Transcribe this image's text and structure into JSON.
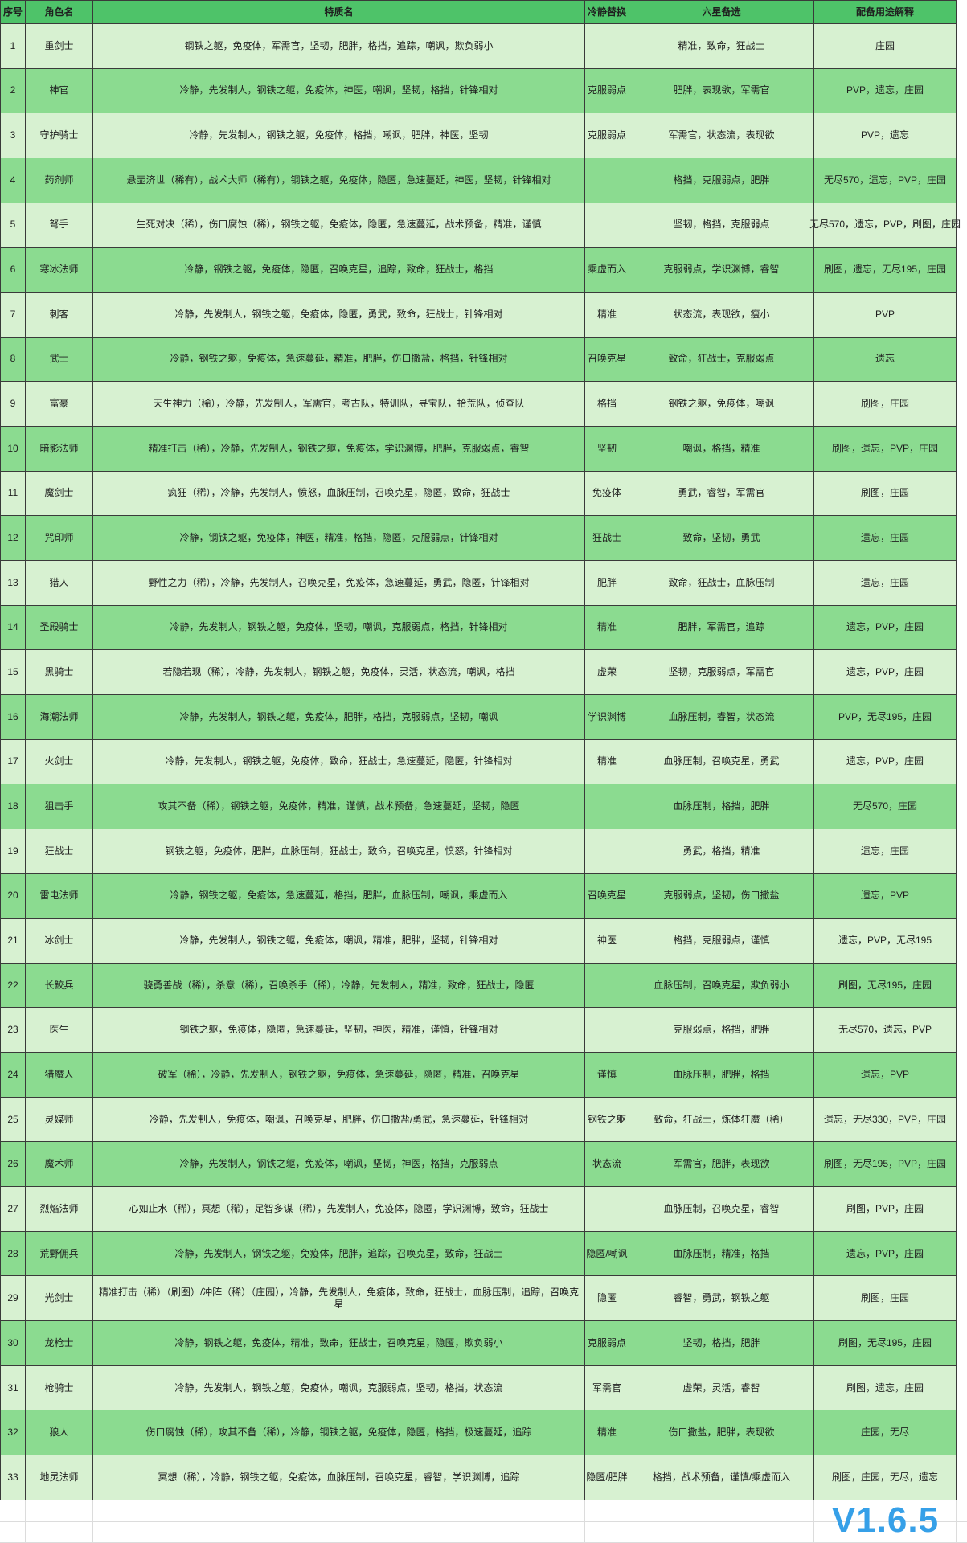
{
  "colors": {
    "header_bg": "#4ec369",
    "row_light": "#d7f1d1",
    "row_dark": "#8bdb90",
    "grid": "#3a3a3a",
    "faint_grid": "#dcdcdc",
    "version_blue": "#36a0e8"
  },
  "header": {
    "cols": [
      "序号",
      "角色名",
      "特质名",
      "冷静替换",
      "六星备选",
      "配备用途解释"
    ]
  },
  "footer": {
    "version": "V1.6.5"
  },
  "rows": [
    {
      "no": "1",
      "name": "重剑士",
      "traits": "钢铁之躯，免疫体，军需官，坚韧，肥胖，格挡，追踪，嘲讽，欺负弱小",
      "calm": "",
      "six": "精准，致命，狂战士",
      "usage": "庄园"
    },
    {
      "no": "2",
      "name": "神官",
      "traits": "冷静，先发制人，钢铁之躯，免疫体，神医，嘲讽，坚韧，格挡，针锋相对",
      "calm": "克服弱点",
      "six": "肥胖，表现欲，军需官",
      "usage": "PVP，遗忘，庄园"
    },
    {
      "no": "3",
      "name": "守护骑士",
      "traits": "冷静，先发制人，钢铁之躯，免疫体，格挡，嘲讽，肥胖，神医，坚韧",
      "calm": "克服弱点",
      "six": "军需官，状态流，表现欲",
      "usage": "PVP，遗忘"
    },
    {
      "no": "4",
      "name": "药剂师",
      "traits": "悬壶济世（稀有），战术大师（稀有），钢铁之躯，免疫体，隐匿，急速蔓延，神医，坚韧，针锋相对",
      "calm": "",
      "six": "格挡，克服弱点，肥胖",
      "usage": "无尽570，遗忘，PVP，庄园"
    },
    {
      "no": "5",
      "name": "弩手",
      "traits": "生死对决（稀），伤口腐蚀（稀），钢铁之躯，免疫体，隐匿，急速蔓延，战术预备，精准，谨慎",
      "calm": "",
      "six": "坚韧，格挡，克服弱点",
      "usage": "无尽570，遗忘，PVP，刷图，庄园"
    },
    {
      "no": "6",
      "name": "寒冰法师",
      "traits": "冷静，钢铁之躯，免疫体，隐匿，召唤克星，追踪，致命，狂战士，格挡",
      "calm": "乘虚而入",
      "six": "克服弱点，学识渊博，睿智",
      "usage": "刷图，遗忘，无尽195，庄园"
    },
    {
      "no": "7",
      "name": "刺客",
      "traits": "冷静，先发制人，钢铁之躯，免疫体，隐匿，勇武，致命，狂战士，针锋相对",
      "calm": "精准",
      "six": "状态流，表现欲，瘦小",
      "usage": "PVP"
    },
    {
      "no": "8",
      "name": "武士",
      "traits": "冷静，钢铁之躯，免疫体，急速蔓延，精准，肥胖，伤口撒盐，格挡，针锋相对",
      "calm": "召唤克星",
      "six": "致命，狂战士，克服弱点",
      "usage": "遗忘"
    },
    {
      "no": "9",
      "name": "富豪",
      "traits": "天生神力（稀），冷静，先发制人，军需官，考古队，特训队，寻宝队，拾荒队，侦查队",
      "calm": "格挡",
      "six": "钢铁之躯，免疫体，嘲讽",
      "usage": "刷图，庄园"
    },
    {
      "no": "10",
      "name": "暗影法师",
      "traits": "精准打击（稀），冷静，先发制人，钢铁之躯，免疫体，学识渊博，肥胖，克服弱点，睿智",
      "calm": "坚韧",
      "six": "嘲讽，格挡，精准",
      "usage": "刷图，遗忘，PVP，庄园"
    },
    {
      "no": "11",
      "name": "魔剑士",
      "traits": "疯狂（稀），冷静，先发制人，愤怒，血脉压制，召唤克星，隐匿，致命，狂战士",
      "calm": "免疫体",
      "six": "勇武，睿智，军需官",
      "usage": "刷图，庄园"
    },
    {
      "no": "12",
      "name": "咒印师",
      "traits": "冷静，钢铁之躯，免疫体，神医，精准，格挡，隐匿，克服弱点，针锋相对",
      "calm": "狂战士",
      "six": "致命，坚韧，勇武",
      "usage": "遗忘，庄园"
    },
    {
      "no": "13",
      "name": "猎人",
      "traits": "野性之力（稀），冷静，先发制人，召唤克星，免疫体，急速蔓延，勇武，隐匿，针锋相对",
      "calm": "肥胖",
      "six": "致命，狂战士，血脉压制",
      "usage": "遗忘，庄园"
    },
    {
      "no": "14",
      "name": "圣殿骑士",
      "traits": "冷静，先发制人，钢铁之躯，免疫体，坚韧，嘲讽，克服弱点，格挡，针锋相对",
      "calm": "精准",
      "six": "肥胖，军需官，追踪",
      "usage": "遗忘，PVP，庄园"
    },
    {
      "no": "15",
      "name": "黑骑士",
      "traits": "若隐若现（稀），冷静，先发制人，钢铁之躯，免疫体，灵活，状态流，嘲讽，格挡",
      "calm": "虚荣",
      "six": "坚韧，克服弱点，军需官",
      "usage": "遗忘，PVP，庄园"
    },
    {
      "no": "16",
      "name": "海潮法师",
      "traits": "冷静，先发制人，钢铁之躯，免疫体，肥胖，格挡，克服弱点，坚韧，嘲讽",
      "calm": "学识渊博",
      "six": "血脉压制，睿智，状态流",
      "usage": "PVP，无尽195，庄园"
    },
    {
      "no": "17",
      "name": "火剑士",
      "traits": "冷静，先发制人，钢铁之躯，免疫体，致命，狂战士，急速蔓延，隐匿，针锋相对",
      "calm": "精准",
      "six": "血脉压制，召唤克星，勇武",
      "usage": "遗忘，PVP，庄园"
    },
    {
      "no": "18",
      "name": "狙击手",
      "traits": "攻其不备（稀），钢铁之躯，免疫体，精准，谨慎，战术预备，急速蔓延，坚韧，隐匿",
      "calm": "",
      "six": "血脉压制，格挡，肥胖",
      "usage": "无尽570，庄园"
    },
    {
      "no": "19",
      "name": "狂战士",
      "traits": "钢铁之躯，免疫体，肥胖，血脉压制，狂战士，致命，召唤克星，愤怒，针锋相对",
      "calm": "",
      "six": "勇武，格挡，精准",
      "usage": "遗忘，庄园"
    },
    {
      "no": "20",
      "name": "雷电法师",
      "traits": "冷静，钢铁之躯，免疫体，急速蔓延，格挡，肥胖，血脉压制，嘲讽，乘虚而入",
      "calm": "召唤克星",
      "six": "克服弱点，坚韧，伤口撒盐",
      "usage": "遗忘，PVP"
    },
    {
      "no": "21",
      "name": "冰剑士",
      "traits": "冷静，先发制人，钢铁之躯，免疫体，嘲讽，精准，肥胖，坚韧，针锋相对",
      "calm": "神医",
      "six": "格挡，克服弱点，谨慎",
      "usage": "遗忘，PVP，无尽195"
    },
    {
      "no": "22",
      "name": "长鲛兵",
      "traits": "骁勇善战（稀），杀意（稀），召唤杀手（稀），冷静，先发制人，精准，致命，狂战士，隐匿",
      "calm": "",
      "six": "血脉压制，召唤克星，欺负弱小",
      "usage": "刷图，无尽195，庄园"
    },
    {
      "no": "23",
      "name": "医生",
      "traits": "钢铁之躯，免疫体，隐匿，急速蔓延，坚韧，神医，精准，谨慎，针锋相对",
      "calm": "",
      "six": "克服弱点，格挡，肥胖",
      "usage": "无尽570，遗忘，PVP"
    },
    {
      "no": "24",
      "name": "猎魔人",
      "traits": "破军（稀），冷静，先发制人，钢铁之躯，免疫体，急速蔓延，隐匿，精准，召唤克星",
      "calm": "谨慎",
      "six": "血脉压制，肥胖，格挡",
      "usage": "遗忘，PVP"
    },
    {
      "no": "25",
      "name": "灵媒师",
      "traits": "冷静，先发制人，免疫体，嘲讽，召唤克星，肥胖，伤口撒盐/勇武，急速蔓延，针锋相对",
      "calm": "钢铁之躯",
      "six": "致命，狂战士，炼体狂魔（稀）",
      "usage": "遗忘，无尽330，PVP，庄园"
    },
    {
      "no": "26",
      "name": "魔术师",
      "traits": "冷静，先发制人，钢铁之躯，免疫体，嘲讽，坚韧，神医，格挡，克服弱点",
      "calm": "状态流",
      "six": "军需官，肥胖，表现欲",
      "usage": "刷图，无尽195，PVP，庄园"
    },
    {
      "no": "27",
      "name": "烈焰法师",
      "traits": "心如止水（稀），冥想（稀），足智多谋（稀），先发制人，免疫体，隐匿，学识渊博，致命，狂战士",
      "calm": "",
      "six": "血脉压制，召唤克星，睿智",
      "usage": "刷图，PVP，庄园"
    },
    {
      "no": "28",
      "name": "荒野佣兵",
      "traits": "冷静，先发制人，钢铁之躯，免疫体，肥胖，追踪，召唤克星，致命，狂战士",
      "calm": "隐匿/嘲讽",
      "six": "血脉压制，精准，格挡",
      "usage": "遗忘，PVP，庄园"
    },
    {
      "no": "29",
      "name": "光剑士",
      "traits": "精准打击（稀）（刷图）/冲阵（稀）（庄园），冷静，先发制人，免疫体，致命，狂战士，血脉压制，追踪，召唤克星",
      "calm": "隐匿",
      "six": "睿智，勇武，钢铁之躯",
      "usage": "刷图，庄园"
    },
    {
      "no": "30",
      "name": "龙枪士",
      "traits": "冷静，钢铁之躯，免疫体，精准，致命，狂战士，召唤克星，隐匿，欺负弱小",
      "calm": "克服弱点",
      "six": "坚韧，格挡，肥胖",
      "usage": "刷图，无尽195，庄园"
    },
    {
      "no": "31",
      "name": "枪骑士",
      "traits": "冷静，先发制人，钢铁之躯，免疫体，嘲讽，克服弱点，坚韧，格挡，状态流",
      "calm": "军需官",
      "six": "虚荣，灵活，睿智",
      "usage": "刷图，遗忘，庄园"
    },
    {
      "no": "32",
      "name": "狼人",
      "traits": "伤口腐蚀（稀），攻其不备（稀），冷静，钢铁之躯，免疫体，隐匿，格挡，极速蔓延，追踪",
      "calm": "精准",
      "six": "伤口撒盐，肥胖，表现欲",
      "usage": "庄园，无尽"
    },
    {
      "no": "33",
      "name": "地灵法师",
      "traits": "冥想（稀），冷静，钢铁之躯，免疫体，血脉压制，召唤克星，睿智，学识渊博，追踪",
      "calm": "隐匿/肥胖",
      "six": "格挡，战术预备，谨慎/乘虚而入",
      "usage": "刷图，庄园，无尽，遗忘"
    }
  ]
}
